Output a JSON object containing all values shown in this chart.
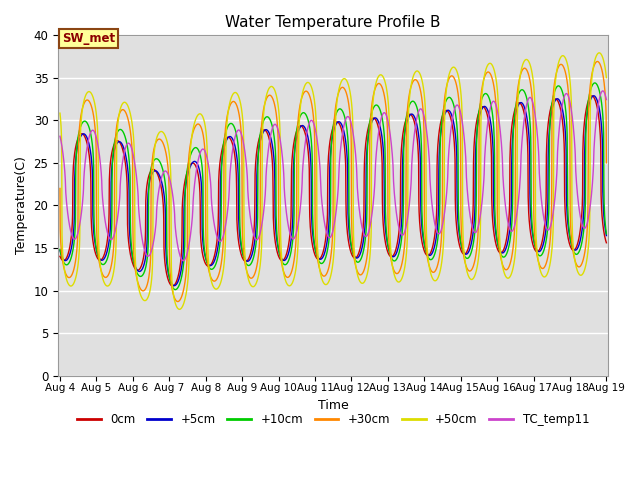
{
  "title": "Water Temperature Profile B",
  "xlabel": "Time",
  "ylabel": "Temperature(C)",
  "ylim": [
    0,
    40
  ],
  "yticks": [
    0,
    5,
    10,
    15,
    20,
    25,
    30,
    35,
    40
  ],
  "bg_color": "#e0e0e0",
  "fig_bg": "#ffffff",
  "annotation_text": "SW_met",
  "annotation_color": "#8b0000",
  "annotation_bg": "#ffff99",
  "annotation_border": "#8b4513",
  "series": [
    {
      "label": "0cm",
      "color": "#cc0000",
      "phase": 0.3,
      "amp": 7.5,
      "mean": 21.0,
      "lag": 0.0,
      "sharpness": 3.0
    },
    {
      "label": "+5cm",
      "color": "#0000cc",
      "phase": 0.3,
      "amp": 7.5,
      "mean": 21.0,
      "lag": 0.05,
      "sharpness": 3.0
    },
    {
      "label": "+10cm",
      "color": "#00cc00",
      "phase": 0.3,
      "amp": 8.5,
      "mean": 21.5,
      "lag": 0.08,
      "sharpness": 3.5
    },
    {
      "label": "+30cm",
      "color": "#ff8800",
      "phase": 0.3,
      "amp": 10.5,
      "mean": 22.0,
      "lag": 0.15,
      "sharpness": 4.0
    },
    {
      "label": "+50cm",
      "color": "#dddd00",
      "phase": 0.3,
      "amp": 11.5,
      "mean": 22.0,
      "lag": 0.2,
      "sharpness": 4.5
    },
    {
      "label": "TC_temp11",
      "color": "#cc44cc",
      "phase": 0.3,
      "amp": 6.5,
      "mean": 22.5,
      "lag": 0.3,
      "sharpness": 1.5
    }
  ],
  "xstart": 4,
  "xend": 19,
  "xtick_labels": [
    "Aug 4",
    "Aug 5",
    "Aug 6",
    "Aug 7",
    "Aug 8",
    "Aug 9",
    "Aug 10",
    "Aug 11",
    "Aug 12",
    "Aug 13",
    "Aug 14",
    "Aug 15",
    "Aug 16",
    "Aug 17",
    "Aug 18",
    "Aug 19"
  ],
  "linewidth": 1.0,
  "n_per_day": 144
}
